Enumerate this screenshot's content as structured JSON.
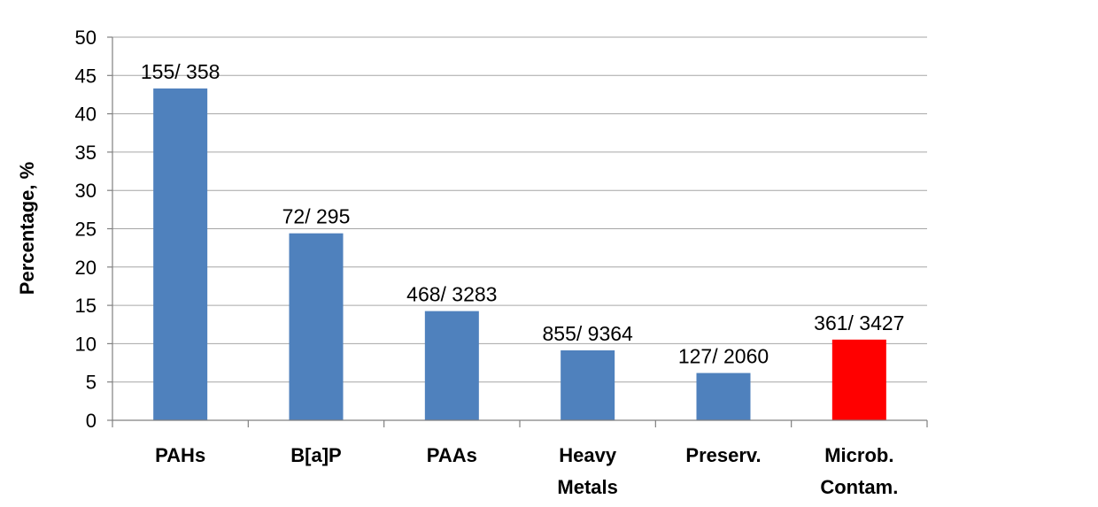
{
  "chart_data": {
    "type": "bar",
    "categories": [
      [
        "PAHs"
      ],
      [
        "B[a]P"
      ],
      [
        "PAAs"
      ],
      [
        "Heavy",
        "Metals"
      ],
      [
        "Preserv."
      ],
      [
        "Microb.",
        "Contam."
      ]
    ],
    "values": [
      43.3,
      24.4,
      14.25,
      9.13,
      6.17,
      10.53
    ],
    "data_labels": [
      "155/ 358",
      "72/ 295",
      "468/ 3283",
      "855/ 9364",
      "127/ 2060",
      "361/ 3427"
    ],
    "bar_colors": [
      "#4f81bd",
      "#4f81bd",
      "#4f81bd",
      "#4f81bd",
      "#4f81bd",
      "#ff0000"
    ],
    "ylabel": "Percentage, %",
    "xlabel": "",
    "ylim": [
      0,
      50
    ],
    "yticks": [
      0,
      5,
      10,
      15,
      20,
      25,
      30,
      35,
      40,
      45,
      50
    ],
    "grid": true,
    "legend": "none"
  }
}
